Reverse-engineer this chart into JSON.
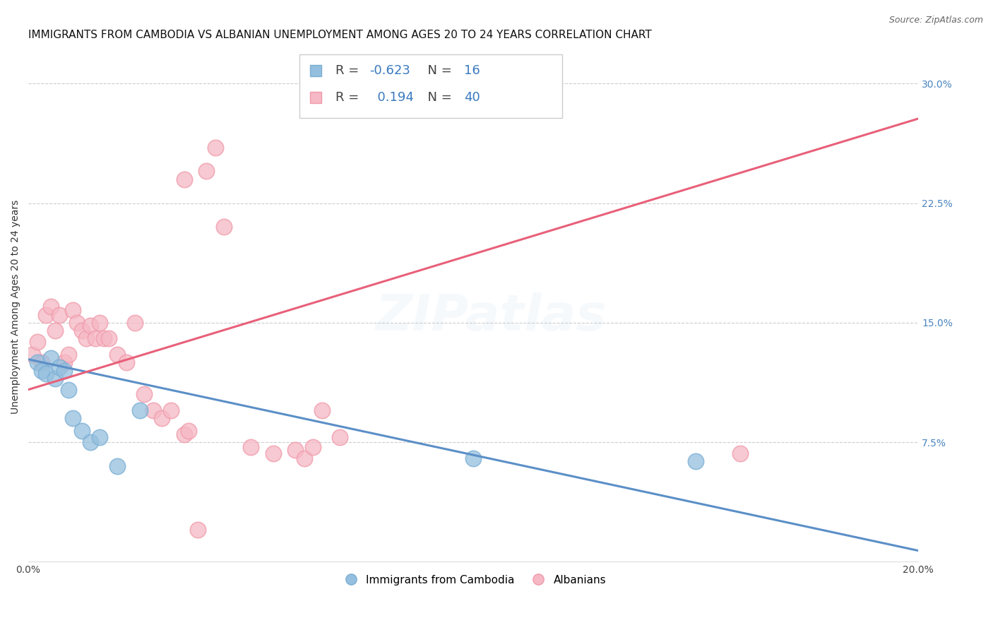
{
  "title": "IMMIGRANTS FROM CAMBODIA VS ALBANIAN UNEMPLOYMENT AMONG AGES 20 TO 24 YEARS CORRELATION CHART",
  "source": "Source: ZipAtlas.com",
  "ylabel": "Unemployment Among Ages 20 to 24 years",
  "xlim": [
    0.0,
    0.2
  ],
  "ylim": [
    0.0,
    0.32
  ],
  "xticks": [
    0.0,
    0.05,
    0.1,
    0.15,
    0.2
  ],
  "xticklabels": [
    "0.0%",
    "",
    "",
    "",
    "20.0%"
  ],
  "yticks_right": [
    0.3,
    0.225,
    0.15,
    0.075,
    0.0
  ],
  "ytick_right_labels": [
    "30.0%",
    "22.5%",
    "15.0%",
    "7.5%",
    ""
  ],
  "grid_color": "#cccccc",
  "watermark": "ZIPatlas",
  "blue_color": "#94bfde",
  "pink_color": "#f5b8c4",
  "blue_edge_color": "#7bafd4",
  "pink_edge_color": "#f09aaa",
  "blue_line_color": "#5b8fc7",
  "pink_line_color": "#e8607a",
  "legend_R_blue": "-0.623",
  "legend_N_blue": "16",
  "legend_R_pink": "0.194",
  "legend_N_pink": "40",
  "blue_scatter_x": [
    0.002,
    0.003,
    0.004,
    0.005,
    0.006,
    0.007,
    0.008,
    0.009,
    0.01,
    0.012,
    0.014,
    0.016,
    0.02,
    0.025,
    0.1,
    0.15
  ],
  "blue_scatter_y": [
    0.125,
    0.12,
    0.118,
    0.128,
    0.115,
    0.122,
    0.12,
    0.108,
    0.09,
    0.082,
    0.075,
    0.078,
    0.06,
    0.095,
    0.065,
    0.063
  ],
  "pink_scatter_x": [
    0.001,
    0.002,
    0.003,
    0.004,
    0.005,
    0.006,
    0.007,
    0.008,
    0.009,
    0.01,
    0.011,
    0.012,
    0.013,
    0.014,
    0.015,
    0.016,
    0.017,
    0.018,
    0.02,
    0.022,
    0.024,
    0.026,
    0.028,
    0.03,
    0.032,
    0.035,
    0.04,
    0.042,
    0.044,
    0.05,
    0.055,
    0.06,
    0.062,
    0.064,
    0.066,
    0.07,
    0.035,
    0.036,
    0.16,
    0.038
  ],
  "pink_scatter_y": [
    0.13,
    0.138,
    0.125,
    0.155,
    0.16,
    0.145,
    0.155,
    0.125,
    0.13,
    0.158,
    0.15,
    0.145,
    0.14,
    0.148,
    0.14,
    0.15,
    0.14,
    0.14,
    0.13,
    0.125,
    0.15,
    0.105,
    0.095,
    0.09,
    0.095,
    0.24,
    0.245,
    0.26,
    0.21,
    0.072,
    0.068,
    0.07,
    0.065,
    0.072,
    0.095,
    0.078,
    0.08,
    0.082,
    0.068,
    0.02
  ],
  "title_fontsize": 11,
  "source_fontsize": 9,
  "ylabel_fontsize": 10,
  "watermark_fontsize": 52,
  "watermark_alpha": 0.1,
  "watermark_color": "#a8c8e8",
  "blue_line_intercept": 0.127,
  "blue_line_slope": -0.6,
  "pink_line_intercept": 0.108,
  "pink_line_slope": 0.85
}
